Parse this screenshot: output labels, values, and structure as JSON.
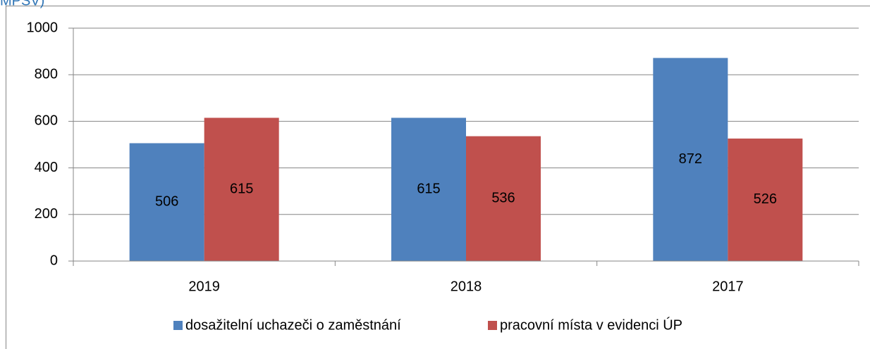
{
  "chart_data": {
    "type": "bar",
    "caption": "MPSV)",
    "categories": [
      "2019",
      "2018",
      "2017"
    ],
    "series": [
      {
        "name": "dosažitelní uchazeči o zaměstnání",
        "color": "#4f81bd",
        "values": [
          506,
          615,
          872
        ]
      },
      {
        "name": "pracovní místa v evidenci ÚP",
        "color": "#c0504d",
        "values": [
          615,
          536,
          526
        ]
      }
    ],
    "ylim": [
      0,
      1000
    ],
    "yticks": [
      0,
      200,
      400,
      600,
      800,
      1000
    ],
    "grid": true,
    "legend": "bottom"
  }
}
